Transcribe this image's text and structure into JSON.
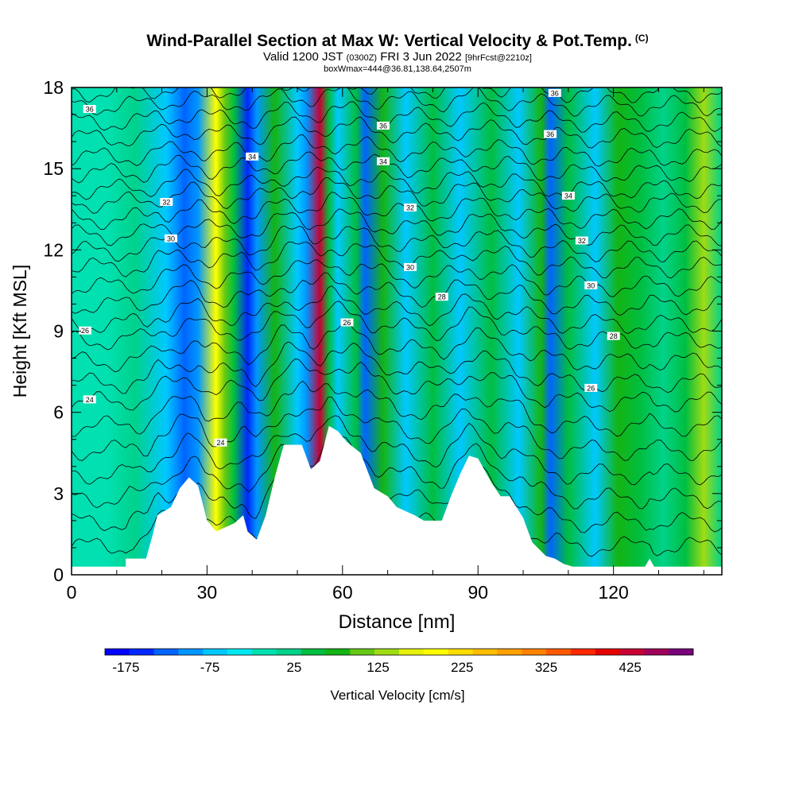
{
  "chart_data": {
    "type": "heatmap",
    "title": "Wind-Parallel Section at Max W: Vertical Velocity & Pot.Temp.",
    "title_mark": "(C)",
    "subtitle_valid": "Valid 1200 JST",
    "subtitle_utc": "(0300Z)",
    "subtitle_date": "FRI 3 Jun 2022",
    "subtitle_fcst": "[9hrFcst@2210z]",
    "box_label": "boxWmax=444@36.81,138.64,2507m",
    "xlabel": "Distance [nm]",
    "ylabel": "Height [Kft MSL]",
    "xlim": [
      0,
      144
    ],
    "ylim": [
      0,
      18
    ],
    "x_ticks": [
      0,
      30,
      60,
      90,
      120
    ],
    "y_ticks": [
      0,
      3,
      6,
      9,
      12,
      15,
      18
    ],
    "colorbar": {
      "label": "Vertical Velocity [cm/s]",
      "range": [
        -200,
        500
      ],
      "tick_values": [
        -175,
        -75,
        25,
        125,
        225,
        325,
        425
      ],
      "tick_labels": [
        "-175",
        "-75",
        "25",
        "125",
        "225",
        "325",
        "425"
      ],
      "colors": [
        "#0000ff",
        "#0028ff",
        "#0064ff",
        "#0096ff",
        "#00c8ff",
        "#00e8f0",
        "#00e0b0",
        "#00d28a",
        "#00be40",
        "#14b414",
        "#64c814",
        "#a0dc14",
        "#e6f00a",
        "#ffff00",
        "#ffdc00",
        "#ffbe00",
        "#ffa000",
        "#ff8200",
        "#ff5a00",
        "#ff2800",
        "#e60000",
        "#c80032",
        "#a0005a",
        "#780078"
      ]
    },
    "vertical_velocity_bands": [
      {
        "x": 0,
        "w": 0
      },
      {
        "x": 8,
        "w": -20
      },
      {
        "x": 14,
        "w": 10
      },
      {
        "x": 21,
        "w": -70
      },
      {
        "x": 25,
        "w": -130
      },
      {
        "x": 28,
        "w": -90
      },
      {
        "x": 32,
        "w": 200
      },
      {
        "x": 34,
        "w": 110
      },
      {
        "x": 36,
        "w": 40
      },
      {
        "x": 39,
        "w": -160
      },
      {
        "x": 41,
        "w": -90
      },
      {
        "x": 45,
        "w": 80
      },
      {
        "x": 50,
        "w": -60
      },
      {
        "x": 52,
        "w": -110
      },
      {
        "x": 55,
        "w": 420
      },
      {
        "x": 57,
        "w": 60
      },
      {
        "x": 59,
        "w": -80
      },
      {
        "x": 63,
        "w": 50
      },
      {
        "x": 65,
        "w": -130
      },
      {
        "x": 69,
        "w": 70
      },
      {
        "x": 74,
        "w": -60
      },
      {
        "x": 80,
        "w": 40
      },
      {
        "x": 86,
        "w": -60
      },
      {
        "x": 93,
        "w": 50
      },
      {
        "x": 99,
        "w": -60
      },
      {
        "x": 104,
        "w": 70
      },
      {
        "x": 106,
        "w": -120
      },
      {
        "x": 110,
        "w": 50
      },
      {
        "x": 116,
        "w": -70
      },
      {
        "x": 121,
        "w": 90
      },
      {
        "x": 126,
        "w": 50
      },
      {
        "x": 131,
        "w": 20
      },
      {
        "x": 136,
        "w": 60
      },
      {
        "x": 140,
        "w": 140
      },
      {
        "x": 144,
        "w": 10
      }
    ],
    "terrain_height_kft": [
      {
        "x": 0,
        "h": 0.3
      },
      {
        "x": 12,
        "h": 0.3
      },
      {
        "x": 12,
        "h": 0.6
      },
      {
        "x": 16.5,
        "h": 0.6
      },
      {
        "x": 17,
        "h": 0.9
      },
      {
        "x": 18,
        "h": 1.5
      },
      {
        "x": 19,
        "h": 2.2
      },
      {
        "x": 22,
        "h": 2.5
      },
      {
        "x": 24,
        "h": 3.2
      },
      {
        "x": 26,
        "h": 3.6
      },
      {
        "x": 28,
        "h": 3.3
      },
      {
        "x": 30,
        "h": 2.0
      },
      {
        "x": 32,
        "h": 1.6
      },
      {
        "x": 36,
        "h": 1.9
      },
      {
        "x": 38,
        "h": 2.2
      },
      {
        "x": 39,
        "h": 1.6
      },
      {
        "x": 41,
        "h": 1.3
      },
      {
        "x": 43,
        "h": 2.2
      },
      {
        "x": 45,
        "h": 3.6
      },
      {
        "x": 47,
        "h": 4.8
      },
      {
        "x": 51,
        "h": 4.8
      },
      {
        "x": 53,
        "h": 3.9
      },
      {
        "x": 55,
        "h": 4.2
      },
      {
        "x": 57,
        "h": 5.5
      },
      {
        "x": 59,
        "h": 5.3
      },
      {
        "x": 61,
        "h": 4.9
      },
      {
        "x": 64,
        "h": 4.5
      },
      {
        "x": 67,
        "h": 3.2
      },
      {
        "x": 70,
        "h": 2.9
      },
      {
        "x": 72,
        "h": 2.5
      },
      {
        "x": 76,
        "h": 2.2
      },
      {
        "x": 78,
        "h": 2.0
      },
      {
        "x": 82,
        "h": 2.0
      },
      {
        "x": 84,
        "h": 2.9
      },
      {
        "x": 86,
        "h": 3.7
      },
      {
        "x": 88,
        "h": 4.4
      },
      {
        "x": 90,
        "h": 4.3
      },
      {
        "x": 93,
        "h": 3.4
      },
      {
        "x": 95,
        "h": 2.9
      },
      {
        "x": 97,
        "h": 2.9
      },
      {
        "x": 100,
        "h": 2.1
      },
      {
        "x": 102,
        "h": 1.2
      },
      {
        "x": 105,
        "h": 0.7
      },
      {
        "x": 107,
        "h": 0.6
      },
      {
        "x": 109,
        "h": 0.4
      },
      {
        "x": 111,
        "h": 0.3
      },
      {
        "x": 127,
        "h": 0.3
      },
      {
        "x": 128,
        "h": 0.6
      },
      {
        "x": 129,
        "h": 0.3
      },
      {
        "x": 144,
        "h": 0.3
      }
    ],
    "pot_temp_contours": [
      {
        "base_kft": 0.9,
        "label": "",
        "label_x": null
      },
      {
        "base_kft": 1.8,
        "label": "",
        "label_x": null
      },
      {
        "base_kft": 2.7,
        "label": "",
        "label_x": null
      },
      {
        "base_kft": 3.6,
        "label": "",
        "label_x": null
      },
      {
        "base_kft": 4.5,
        "label": "24",
        "label_x": 33
      },
      {
        "base_kft": 5.4,
        "label": "",
        "label_x": null
      },
      {
        "base_kft": 6.3,
        "label": "24",
        "label_x": 4
      },
      {
        "base_kft": 7.0,
        "label": "26",
        "label_x": 115
      },
      {
        "base_kft": 7.8,
        "label": "26",
        "label_x": 61
      },
      {
        "base_kft": 8.6,
        "label": "28",
        "label_x": 120
      },
      {
        "base_kft": 9.2,
        "label": "26",
        "label_x": 3
      },
      {
        "base_kft": 9.9,
        "label": "28",
        "label_x": 82
      },
      {
        "base_kft": 10.6,
        "label": "30",
        "label_x": 115
      },
      {
        "base_kft": 11.3,
        "label": "30",
        "label_x": 75
      },
      {
        "base_kft": 11.9,
        "label": "30",
        "label_x": 22
      },
      {
        "base_kft": 12.5,
        "label": "32",
        "label_x": 113
      },
      {
        "base_kft": 13.1,
        "label": "32",
        "label_x": 75
      },
      {
        "base_kft": 13.7,
        "label": "32",
        "label_x": 21
      },
      {
        "base_kft": 14.2,
        "label": "34",
        "label_x": 110
      },
      {
        "base_kft": 14.8,
        "label": "34",
        "label_x": 69
      },
      {
        "base_kft": 15.4,
        "label": "34",
        "label_x": 40
      },
      {
        "base_kft": 16.1,
        "label": "36",
        "label_x": 106
      },
      {
        "base_kft": 16.7,
        "label": "36",
        "label_x": 69
      },
      {
        "base_kft": 17.3,
        "label": "36",
        "label_x": 4
      },
      {
        "base_kft": 17.8,
        "label": "36",
        "label_x": 107
      }
    ]
  }
}
